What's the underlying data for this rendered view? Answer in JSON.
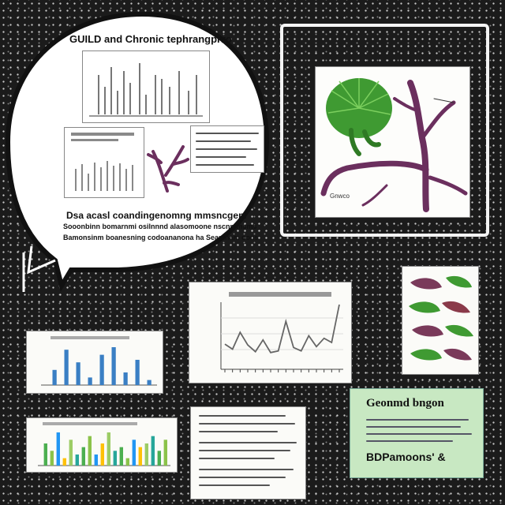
{
  "bubble": {
    "title": "GUILD and Chronic tephrangpivo",
    "caption_title": "Dsa acasl coandingenomng mmsncgenl",
    "caption_line1": "Sooonbinn bomarnmi osilnnnd alasomoone nscnmmsms",
    "caption_line2": "Bamonsinm boanesning codoananona ha Seamnam oons"
  },
  "plant_card": {
    "label": "Gnwco"
  },
  "green_card": {
    "title": "Geonmd bngon",
    "bottom_text": "BDPamoons' &"
  },
  "chart_data": [
    {
      "type": "bar",
      "title": "",
      "note": "small blue bar chart",
      "values": [
        6,
        14,
        9,
        3,
        12,
        15,
        5,
        10,
        2
      ]
    },
    {
      "type": "line",
      "title": "",
      "values": [
        28,
        22,
        42,
        27,
        19,
        33,
        18,
        20,
        55,
        24,
        20,
        38,
        25,
        35,
        30,
        75
      ]
    },
    {
      "type": "bar",
      "title": "",
      "note": "multicolor bar chart",
      "values": [
        6,
        4,
        9,
        2,
        7,
        3,
        5,
        8,
        3,
        6,
        9,
        4,
        5,
        2,
        7,
        5,
        6,
        8,
        4,
        7
      ]
    }
  ],
  "colors": {
    "background": "#1b1b1b",
    "bubble_fill": "#ffffff",
    "plant_green": "#3f9a32",
    "stem_purple": "#6b2f5e",
    "green_card": "#c8e8c2",
    "chart_blue": "#3a7fc4",
    "chart_line": "#666666"
  }
}
